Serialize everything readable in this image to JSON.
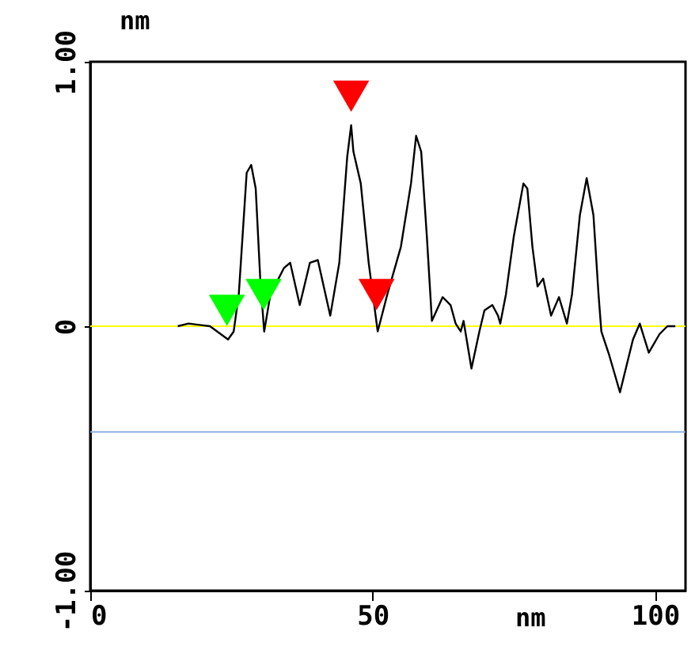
{
  "chart_data": {
    "type": "line",
    "xlabel": "nm",
    "ylabel": "nm",
    "xlim": [
      0,
      105.4
    ],
    "ylim": [
      -1,
      1
    ],
    "xticks": [
      0,
      50,
      100
    ],
    "yticks": [
      {
        "value": -1,
        "label": "-1.00"
      },
      0,
      {
        "value": 1,
        "label": "1.00"
      }
    ],
    "grid": false,
    "marker": "none",
    "line_style": "solid",
    "ref_lines": [
      {
        "axis": "y",
        "value": 0,
        "label": null,
        "color": "#ffff00"
      },
      {
        "axis": "y",
        "value": -0.4,
        "label": null,
        "color": "#8aaee0"
      }
    ],
    "series": [
      {
        "color": "#000000",
        "x": [
          15.5,
          17.4,
          21.2,
          24.4,
          25.4,
          26.3,
          27.7,
          28.5,
          29.3,
          30.1,
          30.8,
          31.9,
          34.3,
          35.4,
          37.1,
          38.9,
          40.3,
          42.5,
          44.1,
          45.5,
          46.2,
          46.6,
          47.9,
          49.3,
          50.9,
          52.6,
          55.0,
          56.8,
          57.7,
          58.6,
          59.6,
          60.5,
          62.4,
          63.8,
          64.7,
          65.6,
          66.1,
          67.5,
          68.9,
          69.8,
          71.2,
          72.2,
          72.6,
          73.6,
          75.0,
          76.7,
          77.4,
          78.3,
          79.2,
          80.2,
          81.6,
          83.0,
          84.4,
          85.3,
          86.7,
          87.9,
          89.1,
          90.0,
          90.5,
          91.9,
          93.8,
          96.1,
          97.3,
          98.9,
          100.8,
          102.2,
          103.6
        ],
        "values": [
          0,
          0.01,
          0,
          -0.05,
          -0.02,
          0.12,
          0.58,
          0.61,
          0.52,
          0.18,
          -0.02,
          0.12,
          0.22,
          0.24,
          0.08,
          0.24,
          0.25,
          0.04,
          0.24,
          0.64,
          0.76,
          0.66,
          0.54,
          0.24,
          -0.02,
          0.12,
          0.3,
          0.54,
          0.72,
          0.66,
          0.34,
          0.02,
          0.11,
          0.08,
          0.01,
          -0.02,
          0.02,
          -0.16,
          -0.02,
          0.06,
          0.08,
          0.04,
          0.01,
          0.12,
          0.34,
          0.54,
          0.52,
          0.3,
          0.15,
          0.18,
          0.04,
          0.11,
          0.01,
          0.12,
          0.42,
          0.56,
          0.42,
          0.12,
          -0.02,
          -0.11,
          -0.25,
          -0.05,
          0.01,
          -0.1,
          -0.03,
          0,
          0
        ]
      },
      {
        "type": "scatter",
        "marker": "triangle",
        "color": "#00ff00",
        "x": [
          24.2,
          30.7
        ],
        "values": [
          0.06,
          0.12
        ]
      },
      {
        "type": "scatter",
        "marker": "triangle",
        "color": "#ff0000",
        "x": [
          46.2,
          50.7
        ],
        "values": [
          0.87,
          0.12
        ]
      }
    ]
  }
}
